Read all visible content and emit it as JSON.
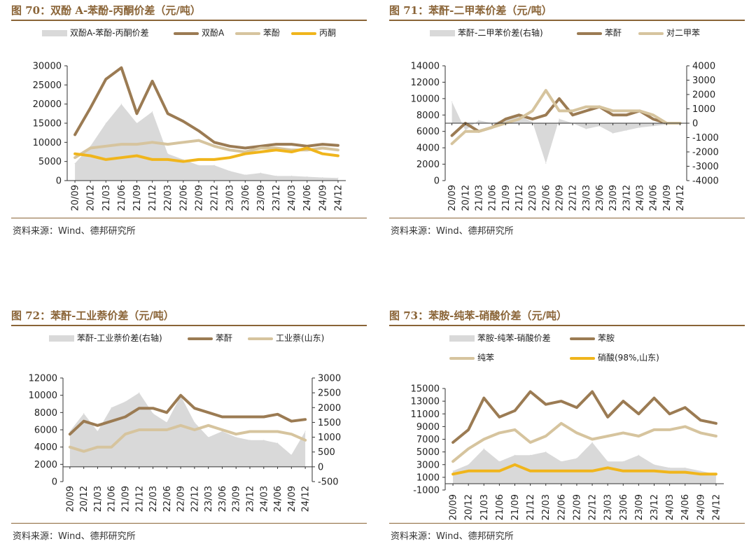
{
  "source": "资料来源：Wind、德邦研究所",
  "chart_data": [
    {
      "type": "line",
      "title": "图 70：双酚 A-苯酚-丙酮价差（元/吨）",
      "categories": [
        "20/09",
        "20/12",
        "21/03",
        "21/06",
        "21/09",
        "21/12",
        "22/03",
        "22/06",
        "22/09",
        "22/12",
        "23/03",
        "23/06",
        "23/09",
        "23/12",
        "24/03",
        "24/06",
        "24/09",
        "24/12"
      ],
      "ylim_left": [
        0,
        30000
      ],
      "yticks_left": [
        "0",
        "5000",
        "10000",
        "15000",
        "20000",
        "25000",
        "30000"
      ],
      "series": [
        {
          "name": "双酚A-苯酚-丙酮价差",
          "kind": "area",
          "axis": "left",
          "color": "#d9d9d9",
          "values": [
            4500,
            9000,
            15000,
            20000,
            15000,
            18000,
            7000,
            5500,
            4000,
            4000,
            2500,
            1500,
            2000,
            1200,
            1200,
            1000,
            800,
            700
          ]
        },
        {
          "name": "双酚A",
          "kind": "line",
          "axis": "left",
          "color": "#9b7b53",
          "values": [
            12000,
            19000,
            26500,
            29500,
            17500,
            26000,
            17500,
            15500,
            13000,
            10000,
            9000,
            8500,
            9000,
            9500,
            9500,
            9000,
            9500,
            9200
          ]
        },
        {
          "name": "苯酚",
          "kind": "line",
          "axis": "left",
          "color": "#d6c49e",
          "values": [
            6000,
            8500,
            9000,
            9500,
            9500,
            10000,
            9500,
            10000,
            10500,
            9000,
            8000,
            7500,
            8500,
            8500,
            8000,
            8000,
            8500,
            8000
          ]
        },
        {
          "name": "丙酮",
          "kind": "line",
          "axis": "left",
          "color": "#f0b51c",
          "values": [
            7000,
            6500,
            5500,
            6000,
            6500,
            5500,
            5500,
            5000,
            5500,
            5500,
            6000,
            7000,
            7500,
            8000,
            7500,
            8500,
            7000,
            6500
          ]
        }
      ]
    },
    {
      "type": "line",
      "title": "图 71：苯酐-二甲苯价差（元/吨）",
      "categories": [
        "20/09",
        "20/12",
        "21/03",
        "21/06",
        "21/09",
        "21/12",
        "22/03",
        "22/06",
        "22/09",
        "22/12",
        "23/03",
        "23/06",
        "23/09",
        "23/12",
        "24/03",
        "24/06",
        "24/09",
        "24/12"
      ],
      "ylim_left": [
        0,
        14000
      ],
      "yticks_left": [
        "0",
        "2000",
        "4000",
        "6000",
        "8000",
        "10000",
        "12000",
        "14000"
      ],
      "ylim_right": [
        -4000,
        4000
      ],
      "yticks_right": [
        "-4000",
        "-3000",
        "-2000",
        "-1000",
        "0",
        "1000",
        "2000",
        "3000",
        "4000"
      ],
      "series": [
        {
          "name": "苯酐-二甲苯价差(右轴)",
          "kind": "area",
          "axis": "right",
          "color": "#d9d9d9",
          "values": [
            1500,
            -500,
            200,
            0,
            300,
            500,
            100,
            -2800,
            300,
            0,
            -400,
            -200,
            -700,
            -500,
            -300,
            -200,
            -100,
            0
          ]
        },
        {
          "name": "苯酐",
          "kind": "line",
          "axis": "left",
          "color": "#9b7b53",
          "values": [
            5500,
            7000,
            6000,
            6500,
            7500,
            8000,
            7500,
            8000,
            10000,
            8000,
            8500,
            9000,
            8000,
            8000,
            8500,
            7500,
            7000,
            7000
          ]
        },
        {
          "name": "对二甲苯",
          "kind": "line",
          "axis": "left",
          "color": "#d6c49e",
          "values": [
            4500,
            6000,
            6000,
            6500,
            7000,
            7500,
            8500,
            11000,
            8500,
            8500,
            9000,
            9000,
            8500,
            8500,
            8500,
            8000,
            7000,
            7000
          ]
        }
      ]
    },
    {
      "type": "line",
      "title": "图 72：苯酐-工业萘价差（元/吨）",
      "categories": [
        "20/09",
        "20/12",
        "21/03",
        "21/06",
        "21/09",
        "21/12",
        "22/03",
        "22/06",
        "22/09",
        "22/12",
        "23/03",
        "23/06",
        "23/09",
        "23/12",
        "24/03",
        "24/06",
        "24/09",
        "24/12"
      ],
      "ylim_left": [
        0,
        12000
      ],
      "yticks_left": [
        "0",
        "2000",
        "4000",
        "6000",
        "8000",
        "10000",
        "12000"
      ],
      "ylim_right": [
        -500,
        3000
      ],
      "yticks_right": [
        "-500",
        "0",
        "500",
        "1000",
        "1500",
        "2000",
        "2500",
        "3000"
      ],
      "series": [
        {
          "name": "苯酐-工业萘价差(右轴)",
          "kind": "area",
          "axis": "right",
          "color": "#d9d9d9",
          "values": [
            1200,
            1800,
            1200,
            2000,
            2200,
            2500,
            1800,
            1500,
            2400,
            1500,
            1000,
            1200,
            1000,
            900,
            900,
            800,
            400,
            1200
          ]
        },
        {
          "name": "苯酐",
          "kind": "line",
          "axis": "left",
          "color": "#9b7b53",
          "values": [
            5500,
            7000,
            6500,
            7000,
            7500,
            8500,
            8500,
            8000,
            10000,
            8500,
            8000,
            7500,
            7500,
            7500,
            7500,
            7800,
            7000,
            7200
          ]
        },
        {
          "name": "工业萘(山东)",
          "kind": "line",
          "axis": "left",
          "color": "#d6c49e",
          "values": [
            4000,
            3500,
            4000,
            4000,
            5500,
            6000,
            6000,
            6000,
            6500,
            6000,
            6500,
            6000,
            5500,
            5800,
            5800,
            5800,
            5500,
            4800
          ]
        }
      ]
    },
    {
      "type": "line",
      "title": "图 73：苯胺-纯苯-硝酸价差（元/吨）",
      "categories": [
        "20/09",
        "20/12",
        "21/03",
        "21/06",
        "21/09",
        "21/12",
        "22/03",
        "22/06",
        "22/09",
        "22/12",
        "23/03",
        "23/06",
        "23/09",
        "23/12",
        "24/03",
        "24/06",
        "24/09",
        "24/12"
      ],
      "ylim_left": [
        -1000,
        15000
      ],
      "yticks_left": [
        "-1000",
        "1000",
        "3000",
        "5000",
        "7000",
        "9000",
        "11000",
        "13000",
        "15000"
      ],
      "series": [
        {
          "name": "苯胺-纯苯-硝酸价差",
          "kind": "area",
          "axis": "left",
          "color": "#d9d9d9",
          "values": [
            2000,
            3000,
            5500,
            3500,
            4500,
            4500,
            5000,
            3500,
            4000,
            6500,
            3500,
            3500,
            4500,
            3000,
            2500,
            2500,
            2000,
            1500
          ]
        },
        {
          "name": "苯胺",
          "kind": "line",
          "axis": "left",
          "color": "#9b7b53",
          "values": [
            6500,
            8500,
            13500,
            10500,
            11500,
            14500,
            12500,
            13000,
            12000,
            14500,
            10500,
            13000,
            11000,
            13500,
            11000,
            12000,
            10000,
            9500
          ]
        },
        {
          "name": "纯苯",
          "kind": "line",
          "axis": "left",
          "color": "#d6c49e",
          "values": [
            3500,
            5500,
            7000,
            8000,
            8500,
            6500,
            7500,
            9500,
            8000,
            7000,
            7500,
            8000,
            7500,
            8500,
            8500,
            9000,
            8000,
            7500
          ]
        },
        {
          "name": "硝酸(98%,山东)",
          "kind": "line",
          "axis": "left",
          "color": "#f0b51c",
          "values": [
            1500,
            2000,
            2000,
            2000,
            3000,
            2000,
            2000,
            2000,
            2000,
            2000,
            2500,
            2000,
            2000,
            2000,
            1800,
            1800,
            1500,
            1500
          ]
        }
      ]
    }
  ]
}
